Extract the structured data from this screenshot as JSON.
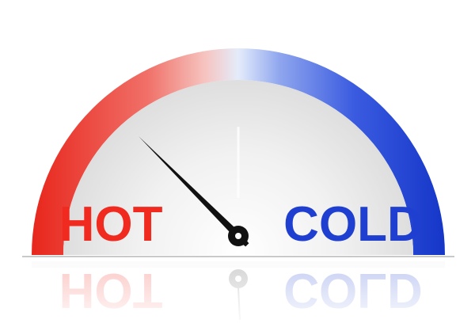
{
  "gauge": {
    "hot_label": "HOT",
    "cold_label": "COLD",
    "hot_color": "#f02a1f",
    "cold_color": "#1e3fd0",
    "needle_fraction": 0.25
  }
}
